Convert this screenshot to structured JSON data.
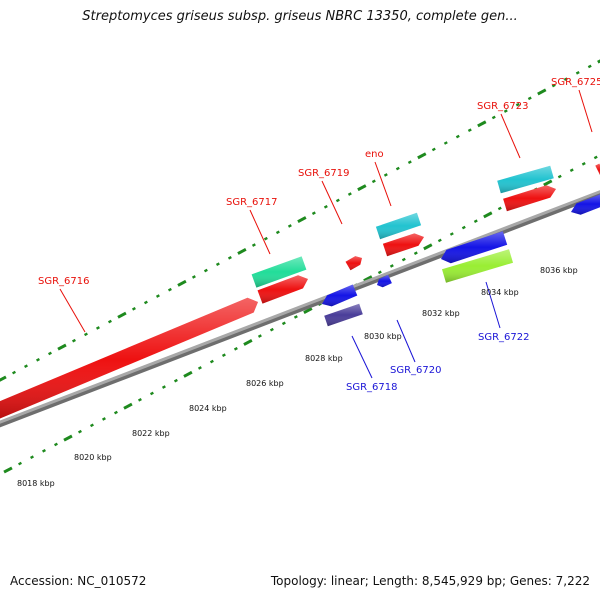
{
  "title": "Streptomyces griseus subsp. griseus NBRC 13350, complete gen...",
  "footer": {
    "accession": "Accession: NC_010572",
    "summary": "Topology: linear; Length: 8,545,929 bp; Genes: 7,222"
  },
  "colors": {
    "backbone": "#8c8c8c",
    "tick": "#1e8a1e",
    "forward_label": "#e8100a",
    "reverse_label": "#1a14d6"
  },
  "scale_labels": [
    "8018 kbp",
    "8020 kbp",
    "8022 kbp",
    "8024 kbp",
    "8026 kbp",
    "8028 kbp",
    "8030 kbp",
    "8032 kbp",
    "8034 kbp",
    "8036 kbp"
  ],
  "gene_labels": {
    "forward": [
      "SGR_6716",
      "SGR_6717",
      "SGR_6719",
      "eno",
      "SGR_6723",
      "SGR_6725"
    ],
    "reverse": [
      "SGR_6718",
      "SGR_6720",
      "SGR_6722"
    ]
  }
}
